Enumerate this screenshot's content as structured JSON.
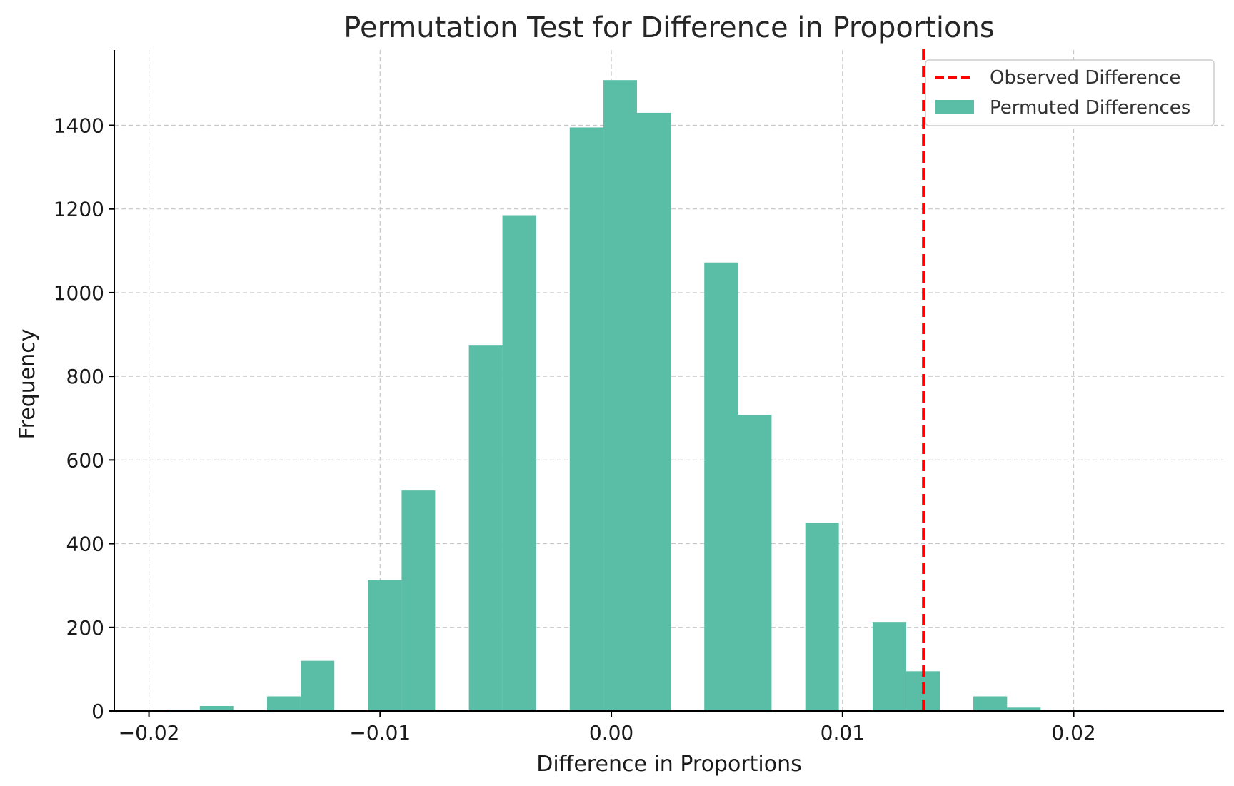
{
  "chart_data": {
    "type": "bar",
    "title": "Permutation Test for Difference in Proportions",
    "xlabel": "Difference in Proportions",
    "ylabel": "Frequency",
    "xlim": [
      -0.0215,
      0.0265
    ],
    "ylim": [
      0,
      1580
    ],
    "xticks": [
      -0.02,
      -0.01,
      0.0,
      0.01,
      0.02
    ],
    "xtick_labels": [
      "−0.02",
      "−0.01",
      "0.00",
      "0.01",
      "0.02"
    ],
    "yticks": [
      0,
      200,
      400,
      600,
      800,
      1000,
      1200,
      1400
    ],
    "ytick_labels": [
      "0",
      "200",
      "400",
      "600",
      "800",
      "1000",
      "1200",
      "1400"
    ],
    "grid": true,
    "legend_position": "top-right",
    "bar_color": "#5abda6",
    "line_color": "#ff0000",
    "bins": [
      {
        "x0": -0.01925,
        "x1": -0.0178,
        "count": 3
      },
      {
        "x0": -0.0178,
        "x1": -0.01635,
        "count": 12
      },
      {
        "x0": -0.01489,
        "x1": -0.01344,
        "count": 35
      },
      {
        "x0": -0.01344,
        "x1": -0.01198,
        "count": 120
      },
      {
        "x0": -0.01053,
        "x1": -0.00907,
        "count": 313
      },
      {
        "x0": -0.00907,
        "x1": -0.00762,
        "count": 527
      },
      {
        "x0": -0.00616,
        "x1": -0.00471,
        "count": 875
      },
      {
        "x0": -0.00471,
        "x1": -0.00325,
        "count": 1185
      },
      {
        "x0": -0.0018,
        "x1": -0.00034,
        "count": 1395
      },
      {
        "x0": -0.00034,
        "x1": 0.00111,
        "count": 1508
      },
      {
        "x0": 0.00111,
        "x1": 0.00257,
        "count": 1430
      },
      {
        "x0": 0.00402,
        "x1": 0.00548,
        "count": 1072
      },
      {
        "x0": 0.00548,
        "x1": 0.00693,
        "count": 708
      },
      {
        "x0": 0.00839,
        "x1": 0.00984,
        "count": 450
      },
      {
        "x0": 0.0113,
        "x1": 0.01275,
        "count": 213
      },
      {
        "x0": 0.01275,
        "x1": 0.01421,
        "count": 95
      },
      {
        "x0": 0.01566,
        "x1": 0.01712,
        "count": 35
      },
      {
        "x0": 0.01712,
        "x1": 0.01857,
        "count": 8
      },
      {
        "x0": 0.02003,
        "x1": 0.02148,
        "count": 2
      }
    ],
    "observed_difference": 0.01351,
    "legend": [
      "Observed Difference",
      "Permuted Differences"
    ]
  }
}
